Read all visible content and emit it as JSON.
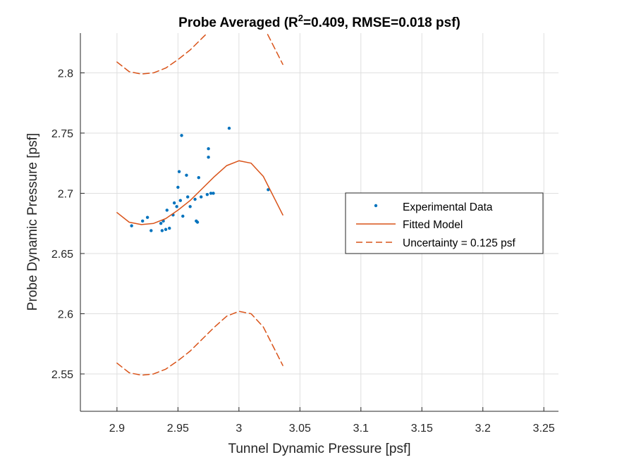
{
  "chart_data": {
    "type": "scatter",
    "title": {
      "prefix": "Probe Averaged (R",
      "superscript": "2",
      "suffix": "=0.409, RMSE=0.018 psf)"
    },
    "xlabel": "Tunnel Dynamic Pressure [psf]",
    "ylabel": "Probe Dynamic Pressure [psf]",
    "xlim": [
      2.87,
      3.262
    ],
    "ylim": [
      2.519,
      2.833
    ],
    "grid": true,
    "legend_location": "right",
    "xticks": [
      2.9,
      2.95,
      3.0,
      3.05,
      3.1,
      3.15,
      3.2,
      3.25
    ],
    "xtick_labels": [
      "2.9",
      "2.95",
      "3",
      "3.05",
      "3.1",
      "3.15",
      "3.2",
      "3.25"
    ],
    "yticks": [
      2.55,
      2.6,
      2.65,
      2.7,
      2.75,
      2.8
    ],
    "ytick_labels": [
      "2.55",
      "2.6",
      "2.65",
      "2.7",
      "2.75",
      "2.8"
    ],
    "series": [
      {
        "name": "Experimental Data",
        "kind": "points",
        "color": "#0072BD",
        "x": [
          2.912,
          2.921,
          2.925,
          2.928,
          2.936,
          2.937,
          2.938,
          2.94,
          2.941,
          2.943,
          2.946,
          2.947,
          2.949,
          2.95,
          2.951,
          2.952,
          2.953,
          2.954,
          2.957,
          2.958,
          2.96,
          2.964,
          2.965,
          2.966,
          2.967,
          2.969,
          2.974,
          2.975,
          2.975,
          2.977,
          2.979,
          2.992,
          3.024
        ],
        "y": [
          2.673,
          2.677,
          2.68,
          2.669,
          2.675,
          2.669,
          2.677,
          2.67,
          2.686,
          2.671,
          2.682,
          2.692,
          2.689,
          2.705,
          2.718,
          2.694,
          2.748,
          2.681,
          2.715,
          2.697,
          2.689,
          2.695,
          2.677,
          2.676,
          2.713,
          2.697,
          2.699,
          2.73,
          2.737,
          2.7,
          2.7,
          2.754,
          2.703
        ]
      },
      {
        "name": "Fitted Model",
        "kind": "line",
        "color": "#D95319",
        "x": [
          2.9,
          2.91,
          2.92,
          2.93,
          2.94,
          2.95,
          2.96,
          2.97,
          2.98,
          2.99,
          3.0,
          3.01,
          3.02,
          3.03,
          3.036
        ],
        "y": [
          2.684,
          2.676,
          2.674,
          2.675,
          2.679,
          2.686,
          2.694,
          2.704,
          2.714,
          2.723,
          2.727,
          2.725,
          2.714,
          2.694,
          2.682
        ]
      },
      {
        "name": "Uncertainty = 0.125 psf",
        "kind": "dashed",
        "color": "#D95319",
        "x": [
          2.9,
          2.91,
          2.92,
          2.93,
          2.94,
          2.95,
          2.96,
          2.97,
          2.98,
          2.99,
          3.0,
          3.01,
          3.02,
          3.03,
          3.036
        ],
        "y": [
          2.809,
          2.801,
          2.799,
          2.8,
          2.804,
          2.811,
          2.819,
          2.829,
          2.839,
          2.848,
          2.852,
          2.85,
          2.839,
          2.819,
          2.807
        ]
      },
      {
        "kind": "dashed",
        "color": "#D95319",
        "x": [
          2.9,
          2.91,
          2.92,
          2.93,
          2.94,
          2.95,
          2.96,
          2.97,
          2.98,
          2.99,
          3.0,
          3.01,
          3.02,
          3.03,
          3.036
        ],
        "y": [
          2.559,
          2.551,
          2.549,
          2.55,
          2.554,
          2.561,
          2.569,
          2.579,
          2.589,
          2.598,
          2.602,
          2.6,
          2.589,
          2.569,
          2.557
        ]
      }
    ]
  }
}
